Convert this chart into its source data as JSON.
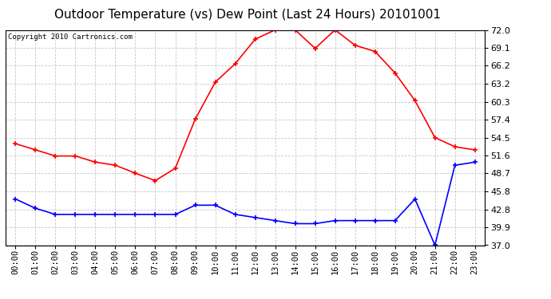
{
  "title": "Outdoor Temperature (vs) Dew Point (Last 24 Hours) 20101001",
  "copyright_text": "Copyright 2010 Cartronics.com",
  "x_labels": [
    "00:00",
    "01:00",
    "02:00",
    "03:00",
    "04:00",
    "05:00",
    "06:00",
    "07:00",
    "08:00",
    "09:00",
    "10:00",
    "11:00",
    "12:00",
    "13:00",
    "14:00",
    "15:00",
    "16:00",
    "17:00",
    "18:00",
    "19:00",
    "20:00",
    "21:00",
    "22:00",
    "23:00"
  ],
  "y_ticks": [
    37.0,
    39.9,
    42.8,
    45.8,
    48.7,
    51.6,
    54.5,
    57.4,
    60.3,
    63.2,
    66.2,
    69.1,
    72.0
  ],
  "ylim": [
    37.0,
    72.0
  ],
  "temp_data": [
    53.5,
    52.5,
    51.5,
    51.5,
    50.5,
    50.0,
    48.7,
    47.5,
    49.5,
    57.5,
    63.5,
    66.5,
    70.5,
    72.0,
    72.0,
    69.0,
    72.0,
    69.5,
    68.5,
    65.0,
    60.5,
    54.5,
    53.0,
    52.5
  ],
  "dew_data": [
    44.5,
    43.0,
    42.0,
    42.0,
    42.0,
    42.0,
    42.0,
    42.0,
    42.0,
    43.5,
    43.5,
    42.0,
    41.5,
    41.0,
    40.5,
    40.5,
    41.0,
    41.0,
    41.0,
    41.0,
    44.5,
    37.0,
    50.0,
    50.5
  ],
  "temp_color": "#ff0000",
  "dew_color": "#0000ff",
  "background_color": "#ffffff",
  "plot_bg_color": "#ffffff",
  "grid_color": "#c8c8c8",
  "title_fontsize": 11,
  "copyright_fontsize": 6.5,
  "tick_fontsize": 7.5,
  "ytick_fontsize": 8
}
